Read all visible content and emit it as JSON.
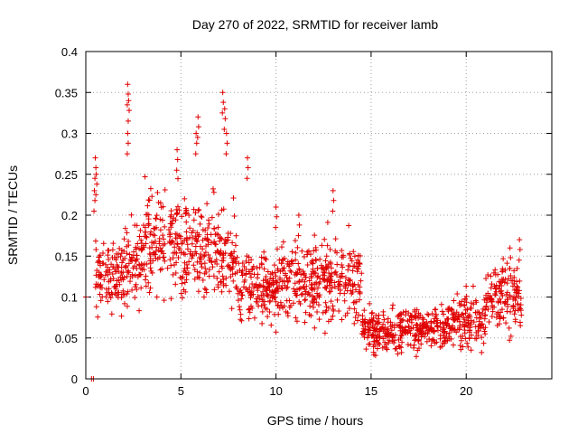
{
  "chart_data": {
    "type": "scatter",
    "title": "Day 270 of 2022, SRMTID for receiver lamb",
    "xlabel": "GPS time / hours",
    "ylabel": "SRMTID / TECUs",
    "xlim": [
      0,
      24.5
    ],
    "ylim": [
      0,
      0.4
    ],
    "x_ticks": [
      0,
      5,
      10,
      15,
      20
    ],
    "x_tick_labels": [
      "0",
      "5",
      "10",
      "15",
      "20"
    ],
    "y_ticks": [
      0,
      0.05,
      0.1,
      0.15,
      0.2,
      0.25,
      0.3,
      0.35,
      0.4
    ],
    "y_tick_labels": [
      "0",
      "0.05",
      "0.1",
      "0.15",
      "0.2",
      "0.25",
      "0.3",
      "0.35",
      "0.4"
    ],
    "grid": true,
    "marker": "plus",
    "series": [
      {
        "name": "SRMTID",
        "color": "#e00000",
        "segments": [
          {
            "x_start": 0.5,
            "x_end": 2.0,
            "mean": 0.13,
            "spread": 0.03
          },
          {
            "x_start": 2.0,
            "x_end": 3.0,
            "mean": 0.14,
            "spread": 0.04
          },
          {
            "x_start": 3.0,
            "x_end": 5.0,
            "mean": 0.17,
            "spread": 0.04
          },
          {
            "x_start": 5.0,
            "x_end": 7.0,
            "mean": 0.16,
            "spread": 0.04
          },
          {
            "x_start": 7.0,
            "x_end": 8.0,
            "mean": 0.15,
            "spread": 0.04
          },
          {
            "x_start": 8.0,
            "x_end": 10.0,
            "mean": 0.11,
            "spread": 0.03
          },
          {
            "x_start": 10.0,
            "x_end": 12.0,
            "mean": 0.12,
            "spread": 0.035
          },
          {
            "x_start": 12.0,
            "x_end": 14.5,
            "mean": 0.12,
            "spread": 0.035
          },
          {
            "x_start": 14.5,
            "x_end": 17.0,
            "mean": 0.06,
            "spread": 0.018
          },
          {
            "x_start": 17.0,
            "x_end": 19.0,
            "mean": 0.06,
            "spread": 0.018
          },
          {
            "x_start": 19.0,
            "x_end": 21.0,
            "mean": 0.07,
            "spread": 0.022
          },
          {
            "x_start": 21.0,
            "x_end": 22.9,
            "mean": 0.1,
            "spread": 0.03
          }
        ],
        "peaks": [
          {
            "x": 0.5,
            "y": 0.27
          },
          {
            "x": 0.55,
            "y": 0.25
          },
          {
            "x": 0.45,
            "y": 0.23
          },
          {
            "x": 2.2,
            "y": 0.36
          },
          {
            "x": 2.25,
            "y": 0.34
          },
          {
            "x": 2.2,
            "y": 0.3
          },
          {
            "x": 4.8,
            "y": 0.28
          },
          {
            "x": 5.9,
            "y": 0.32
          },
          {
            "x": 5.8,
            "y": 0.3
          },
          {
            "x": 7.2,
            "y": 0.35
          },
          {
            "x": 7.3,
            "y": 0.33
          },
          {
            "x": 7.4,
            "y": 0.3
          },
          {
            "x": 8.5,
            "y": 0.27
          },
          {
            "x": 13.0,
            "y": 0.23
          },
          {
            "x": 10.0,
            "y": 0.21
          },
          {
            "x": 11.2,
            "y": 0.2
          },
          {
            "x": 22.8,
            "y": 0.17
          },
          {
            "x": 22.3,
            "y": 0.16
          },
          {
            "x": 0.0,
            "y": 0.1
          },
          {
            "x": 0.3,
            "y": 0.0
          },
          {
            "x": 0.4,
            "y": 0.0
          }
        ]
      }
    ]
  }
}
